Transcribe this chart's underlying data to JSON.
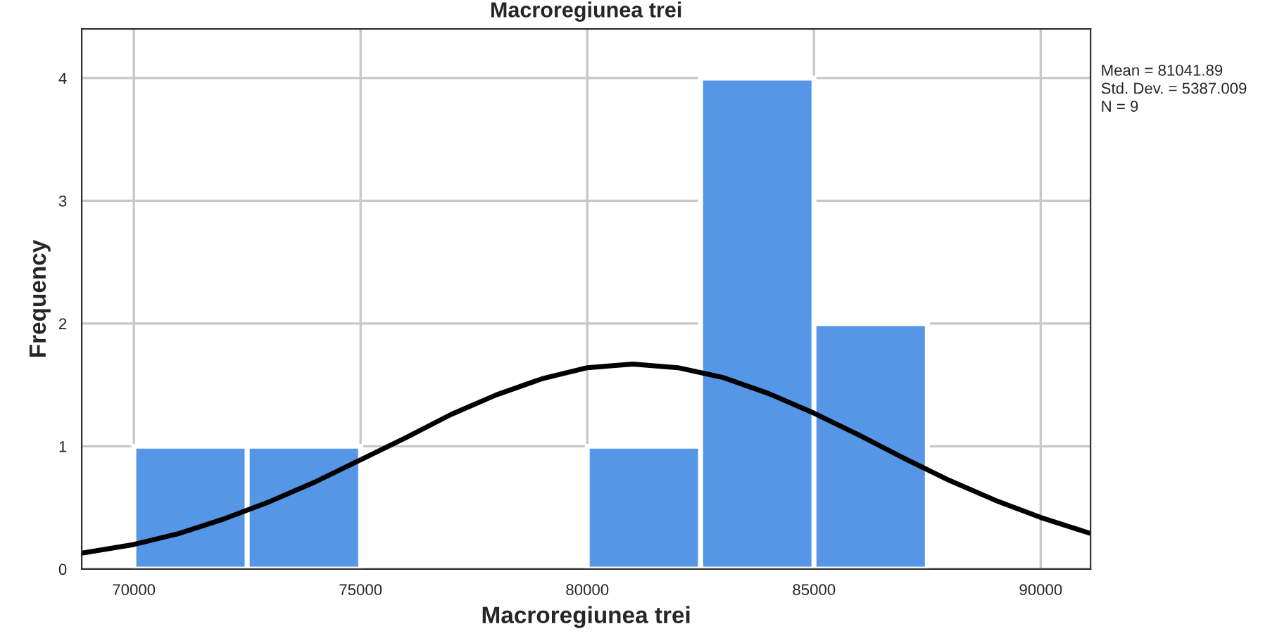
{
  "chart_data": {
    "type": "histogram",
    "title": "Macroregiunea trei",
    "xlabel": "Macroregiunea trei",
    "ylabel": "Frequency",
    "bins": [
      70000,
      72500,
      75000,
      77500,
      80000,
      82500,
      85000,
      87500
    ],
    "series": [
      {
        "color": "#5596e6",
        "values": [
          1,
          1,
          0,
          0,
          1,
          4,
          2
        ]
      },
      {
        "type": "line",
        "color": "#000000",
        "x": [
          68850,
          70000,
          71000,
          72000,
          73000,
          74000,
          75000,
          76000,
          77000,
          78000,
          79000,
          80000,
          81000,
          82000,
          83000,
          84000,
          85000,
          86000,
          87000,
          88000,
          89000,
          90000,
          91100
        ],
        "values": [
          0.13,
          0.2,
          0.29,
          0.41,
          0.55,
          0.71,
          0.89,
          1.07,
          1.26,
          1.42,
          1.55,
          1.64,
          1.67,
          1.64,
          1.56,
          1.43,
          1.27,
          1.09,
          0.9,
          0.72,
          0.56,
          0.42,
          0.29
        ]
      }
    ],
    "xlim": [
      68850,
      91100
    ],
    "ylim": [
      0,
      4.4
    ],
    "xticks": [
      70000,
      75000,
      80000,
      85000,
      90000
    ],
    "yticks": [
      0,
      1,
      2,
      3,
      4
    ],
    "grid": true,
    "legend": false,
    "annotations": [
      "Mean = 81041.89",
      "Std. Dev. = 5387.009",
      "N = 9"
    ]
  }
}
